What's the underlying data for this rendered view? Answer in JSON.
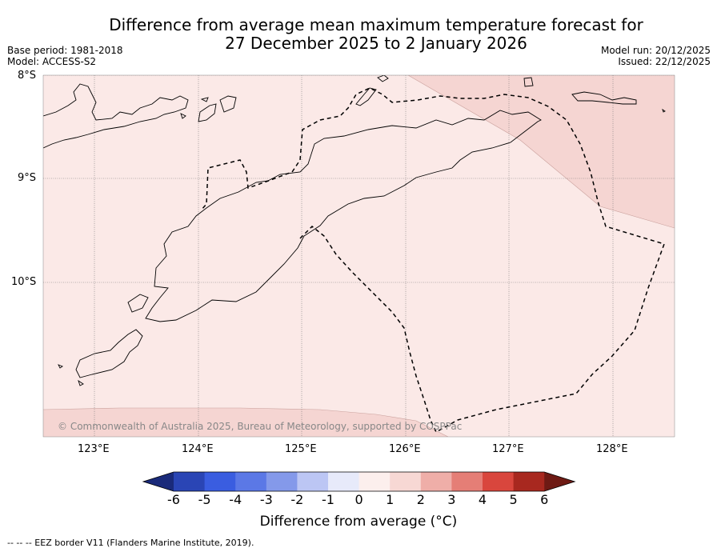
{
  "header": {
    "title_line1": "Difference from average mean maximum temperature forecast for",
    "title_line2": "27 December 2025 to 2 January 2026",
    "base_period": "Base period: 1981-2018",
    "model": "Model: ACCESS-S2",
    "model_run": "Model run: 20/12/2025",
    "issued": "Issued: 22/12/2025"
  },
  "map": {
    "lat_labels": [
      "8°S",
      "9°S",
      "10°S"
    ],
    "lon_labels": [
      "123°E",
      "124°E",
      "125°E",
      "126°E",
      "127°E",
      "128°E"
    ],
    "copyright": "© Commonwealth of Australia 2025, Bureau of Meteorology, supported by COSPPac",
    "base_anomaly_band": "0 to 1",
    "warm_region_band": "1 to 2",
    "colors": {
      "band_0_1": "#fbe9e7",
      "band_1_2": "#f5d5d2",
      "grid": "#777777"
    }
  },
  "colorbar": {
    "ticks": [
      "-6",
      "-5",
      "-4",
      "-3",
      "-2",
      "-1",
      "0",
      "1",
      "2",
      "3",
      "4",
      "5",
      "6"
    ],
    "colors": [
      "#1a2a7a",
      "#2a45b5",
      "#3a5de0",
      "#5b78e6",
      "#8499ea",
      "#bcc6f4",
      "#e7eafa",
      "#fcefed",
      "#f7d8d4",
      "#efaea8",
      "#e57e76",
      "#d9463d",
      "#a8281f",
      "#6e1a14"
    ],
    "label": "Difference from average (°C)"
  },
  "footnote": "--  --  -- EEZ border V11 (Flanders Marine Institute, 2019)."
}
